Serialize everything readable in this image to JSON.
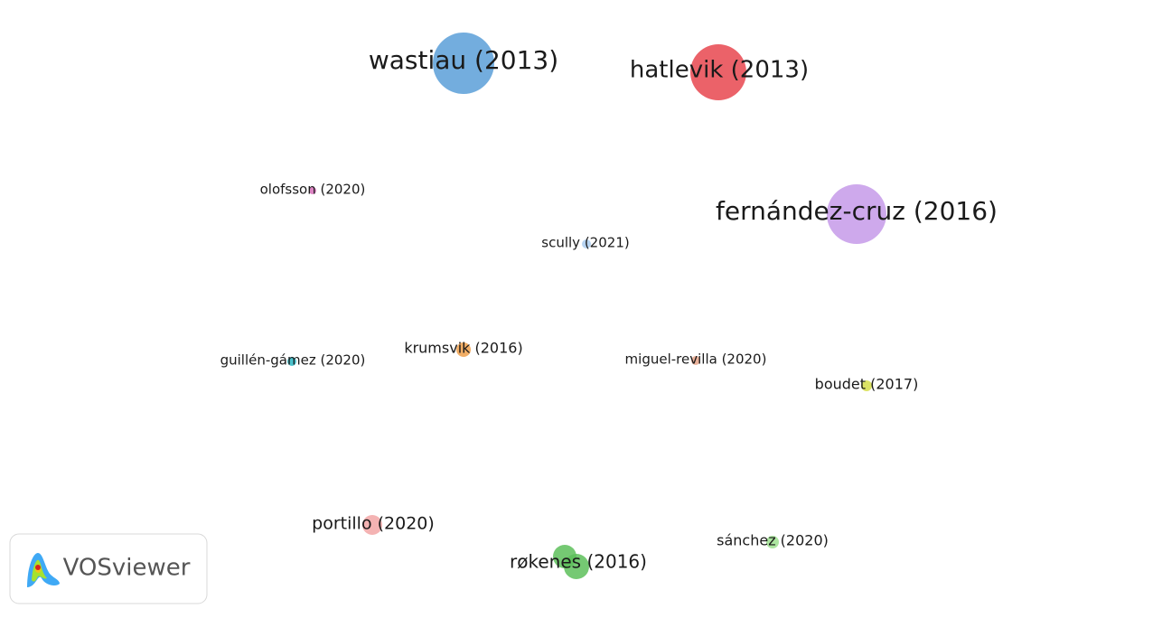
{
  "nodes": [
    {
      "label": "wastiau (2013)"
    },
    {
      "label": "hatlevik (2013)"
    },
    {
      "label": "fernández-cruz (2016)"
    },
    {
      "label": "olofsson (2020)"
    },
    {
      "label": "scully (2021)"
    },
    {
      "label": "krumsvik (2016)"
    },
    {
      "label": "guillén-gámez (2020)"
    },
    {
      "label": "miguel-revilla (2020)"
    },
    {
      "label": "boudet (2017)"
    },
    {
      "label": "portillo (2020)"
    },
    {
      "label": "røkenes (2016)"
    },
    {
      "label": "sánchez (2020)"
    }
  ],
  "logo": {
    "text": "VOSviewer"
  }
}
